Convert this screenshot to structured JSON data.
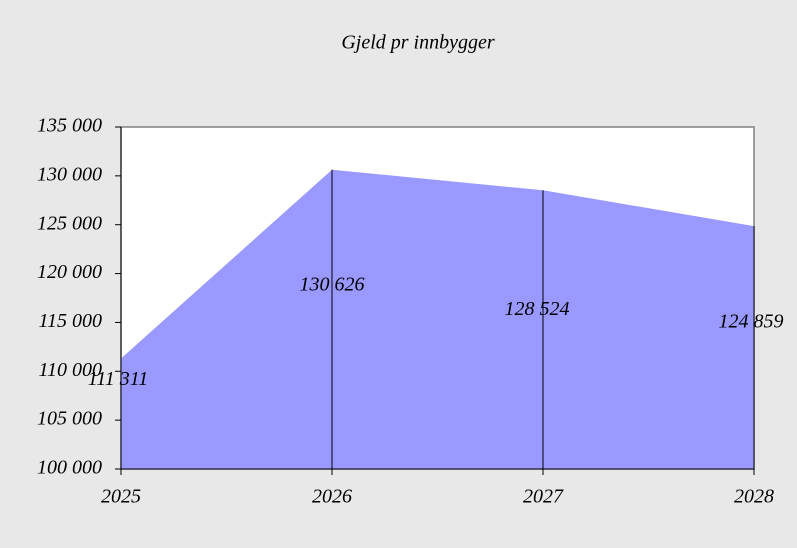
{
  "chart_data": {
    "type": "area",
    "title": "Gjeld pr innbygger",
    "categories": [
      "2025",
      "2026",
      "2027",
      "2028"
    ],
    "values": [
      111311,
      130626,
      128524,
      124859
    ],
    "value_labels": [
      "111 311",
      "130 626",
      "128 524",
      "124 859"
    ],
    "color": "#9999ff",
    "ylim": [
      100000,
      135000
    ],
    "yticks": [
      {
        "value": 100000,
        "label": "100 000"
      },
      {
        "value": 105000,
        "label": "105 000"
      },
      {
        "value": 110000,
        "label": "110 000"
      },
      {
        "value": 115000,
        "label": "115 000"
      },
      {
        "value": 120000,
        "label": "120 000"
      },
      {
        "value": 125000,
        "label": "125 000"
      },
      {
        "value": 130000,
        "label": "130 000"
      },
      {
        "value": 135000,
        "label": "135 000"
      }
    ]
  }
}
